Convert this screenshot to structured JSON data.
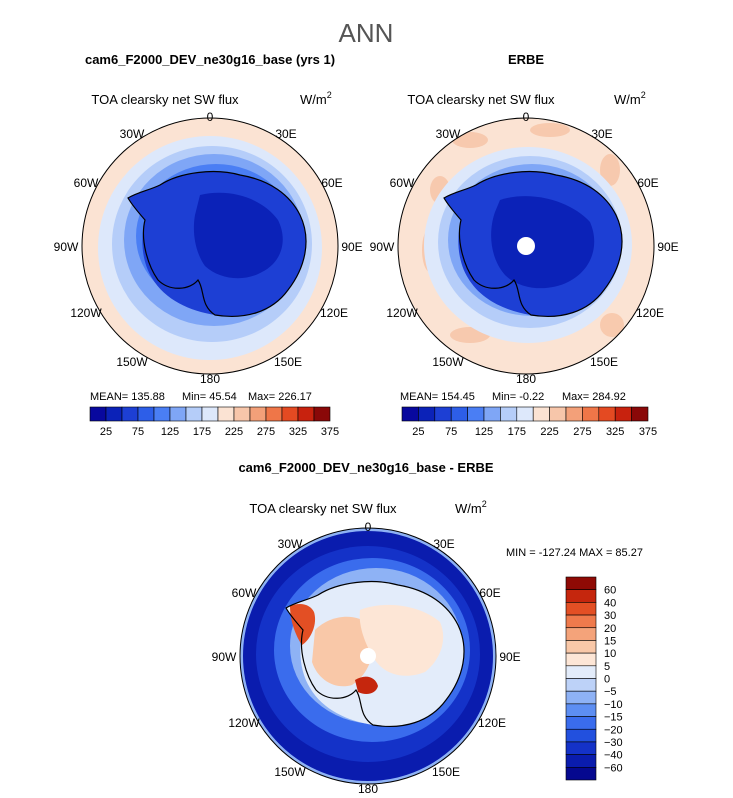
{
  "figure": {
    "season": "ANN",
    "panel1_title": "cam6_F2000_DEV_ne30g16_base (yrs 1)",
    "panel2_title": "ERBE",
    "panel3_title": "cam6_F2000_DEV_ne30g16_base - ERBE",
    "variable": "TOA clearsky net SW flux",
    "units": "W/m",
    "units_exp": "2"
  },
  "stats": {
    "p1": {
      "mean": "MEAN= 135.88",
      "min": "Min=  45.54",
      "max": "Max= 226.17"
    },
    "p2": {
      "mean": "MEAN= 154.45",
      "min": "Min=  -0.22",
      "max": "Max= 284.92"
    },
    "p3": "MIN = -127.24  MAX =  85.27"
  },
  "colors": {
    "abs_scale": [
      "#08089e",
      "#0b22b8",
      "#1d3fd4",
      "#2d5ee8",
      "#4a7ef4",
      "#7fa6f6",
      "#b5cdf9",
      "#dde8fb",
      "#fbe3d3",
      "#f7c6aa",
      "#f3a079",
      "#ef7648",
      "#e44a22",
      "#c8220e",
      "#8a0808"
    ],
    "diff_scale": [
      "#05088f",
      "#0a1cae",
      "#1432c8",
      "#2250de",
      "#3a6ced",
      "#5d8ef2",
      "#8eb2f5",
      "#bdd2f8",
      "#e3ecfa",
      "#fde6d6",
      "#f9c8a8",
      "#f4a37a",
      "#ef7a4c",
      "#e34f24",
      "#c5260d",
      "#8f0a05"
    ],
    "coast": "#000000",
    "pole": "#ffffff"
  },
  "chart_data": [
    {
      "type": "heatmap",
      "projection": "south-polar-stereographic",
      "title": "cam6_F2000_DEV_ne30g16_base (yrs 1)",
      "variable": "TOA clearsky net SW flux",
      "units": "W/m^2",
      "longitude_labels": [
        "0",
        "30E",
        "60E",
        "90E",
        "120E",
        "150E",
        "180",
        "150W",
        "120W",
        "90W",
        "60W",
        "30W"
      ],
      "contour_levels": [
        25,
        50,
        75,
        100,
        125,
        150,
        175,
        200,
        225,
        250,
        275,
        300,
        325,
        350,
        375
      ],
      "colorbar_tick_labels": [
        "25",
        "75",
        "125",
        "175",
        "225",
        "275",
        "325",
        "375"
      ],
      "mean": 135.88,
      "min": 45.54,
      "max": 226.17
    },
    {
      "type": "heatmap",
      "projection": "south-polar-stereographic",
      "title": "ERBE",
      "variable": "TOA clearsky net SW flux",
      "units": "W/m^2",
      "longitude_labels": [
        "0",
        "30E",
        "60E",
        "90E",
        "120E",
        "150E",
        "180",
        "150W",
        "120W",
        "90W",
        "60W",
        "30W"
      ],
      "contour_levels": [
        25,
        50,
        75,
        100,
        125,
        150,
        175,
        200,
        225,
        250,
        275,
        300,
        325,
        350,
        375
      ],
      "colorbar_tick_labels": [
        "25",
        "75",
        "125",
        "175",
        "225",
        "275",
        "325",
        "375"
      ],
      "mean": 154.45,
      "min": -0.22,
      "max": 284.92
    },
    {
      "type": "heatmap",
      "projection": "south-polar-stereographic",
      "title": "cam6_F2000_DEV_ne30g16_base - ERBE",
      "variable": "TOA clearsky net SW flux",
      "units": "W/m^2",
      "longitude_labels": [
        "0",
        "30E",
        "60E",
        "90E",
        "120E",
        "150E",
        "180",
        "150W",
        "120W",
        "90W",
        "60W",
        "30W"
      ],
      "contour_levels": [
        -60,
        -40,
        -30,
        -20,
        -15,
        -10,
        -5,
        0,
        5,
        10,
        15,
        20,
        30,
        40,
        60
      ],
      "colorbar_tick_labels": [
        "60",
        "40",
        "30",
        "20",
        "15",
        "10",
        "5",
        "0",
        "−5",
        "−10",
        "−15",
        "−20",
        "−30",
        "−40",
        "−60"
      ],
      "min": -127.24,
      "max": 85.27
    }
  ]
}
